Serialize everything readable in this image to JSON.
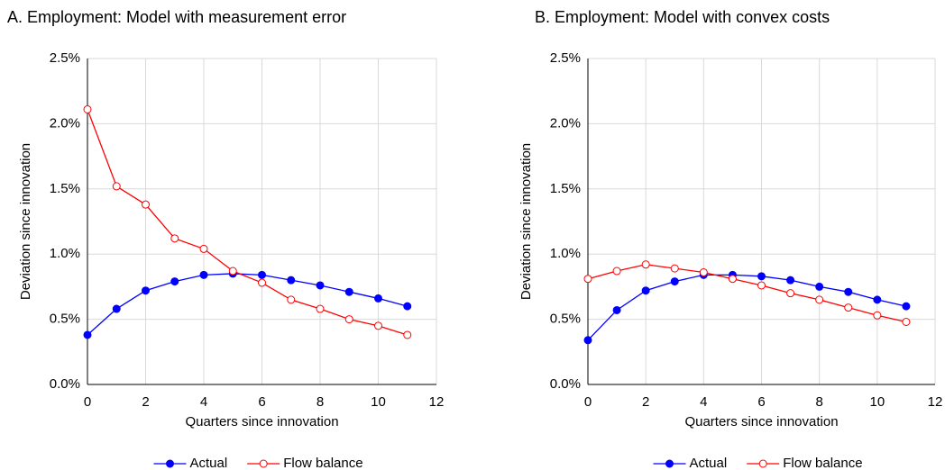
{
  "chart_data": [
    {
      "type": "line",
      "title": "A. Employment: Model with measurement error",
      "xlabel": "Quarters since innovation",
      "ylabel": "Deviation since innovation",
      "x": [
        0,
        1,
        2,
        3,
        4,
        5,
        6,
        7,
        8,
        9,
        10,
        11
      ],
      "xlim": [
        0,
        12
      ],
      "xticks": [
        0,
        2,
        4,
        6,
        8,
        10,
        12
      ],
      "ylim": [
        0,
        2.5
      ],
      "yticks": [
        {
          "value": 0,
          "label": "0.0%"
        },
        {
          "value": 0.5,
          "label": "0.5%"
        },
        {
          "value": 1,
          "label": "1.0%"
        },
        {
          "value": 1.5,
          "label": "1.5%"
        },
        {
          "value": 2,
          "label": "2.0%"
        },
        {
          "value": 2.5,
          "label": "2.5%"
        }
      ],
      "grid": true,
      "legend": "bottom",
      "series": [
        {
          "name": "Actual",
          "color": "#0000ff",
          "filled": true,
          "values": [
            0.38,
            0.58,
            0.72,
            0.79,
            0.84,
            0.85,
            0.84,
            0.8,
            0.76,
            0.71,
            0.66,
            0.6
          ]
        },
        {
          "name": "Flow balance",
          "color": "#ff0000",
          "filled": false,
          "values": [
            2.11,
            1.52,
            1.38,
            1.12,
            1.04,
            0.87,
            0.78,
            0.65,
            0.58,
            0.5,
            0.45,
            0.38
          ]
        }
      ]
    },
    {
      "type": "line",
      "title": "B. Employment: Model with convex costs",
      "xlabel": "Quarters since innovation",
      "ylabel": "Deviation since innovation",
      "x": [
        0,
        1,
        2,
        3,
        4,
        5,
        6,
        7,
        8,
        9,
        10,
        11
      ],
      "xlim": [
        0,
        12
      ],
      "xticks": [
        0,
        2,
        4,
        6,
        8,
        10,
        12
      ],
      "ylim": [
        0,
        2.5
      ],
      "yticks": [
        {
          "value": 0,
          "label": "0.0%"
        },
        {
          "value": 0.5,
          "label": "0.5%"
        },
        {
          "value": 1,
          "label": "1.0%"
        },
        {
          "value": 1.5,
          "label": "1.5%"
        },
        {
          "value": 2,
          "label": "2.0%"
        },
        {
          "value": 2.5,
          "label": "2.5%"
        }
      ],
      "grid": true,
      "legend": "bottom",
      "series": [
        {
          "name": "Actual",
          "color": "#0000ff",
          "filled": true,
          "values": [
            0.34,
            0.57,
            0.72,
            0.79,
            0.84,
            0.84,
            0.83,
            0.8,
            0.75,
            0.71,
            0.65,
            0.6
          ]
        },
        {
          "name": "Flow balance",
          "color": "#ff0000",
          "filled": false,
          "values": [
            0.81,
            0.87,
            0.92,
            0.89,
            0.86,
            0.81,
            0.76,
            0.7,
            0.65,
            0.59,
            0.53,
            0.48
          ]
        }
      ]
    }
  ]
}
